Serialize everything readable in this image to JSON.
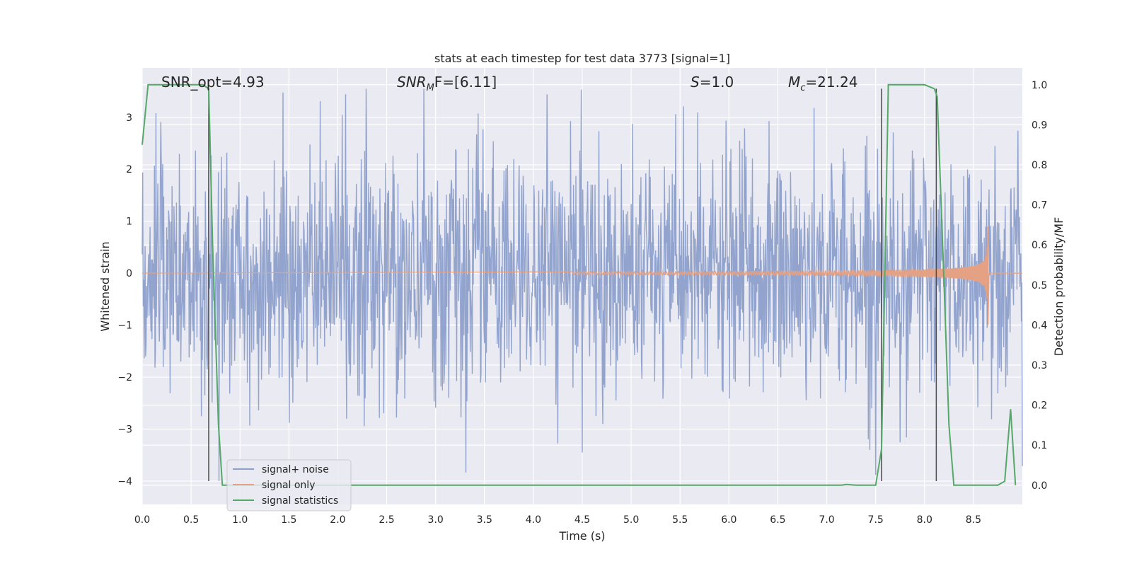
{
  "chart_data": {
    "type": "line",
    "title": "stats at each timestep for test data 3773 [signal=1]",
    "xlabel": "Time (s)",
    "ylabel": "Whitened strain",
    "y2label": "Detection probability/MF",
    "xlim": [
      0.0,
      9.0
    ],
    "ylim": [
      -4.45,
      3.95
    ],
    "y2lim": [
      -0.048,
      1.042
    ],
    "xticks": [
      "0.0",
      "0.5",
      "1.0",
      "1.5",
      "2.0",
      "2.5",
      "3.0",
      "3.5",
      "4.0",
      "4.5",
      "5.0",
      "5.5",
      "6.0",
      "6.5",
      "7.0",
      "7.5",
      "8.0",
      "8.5"
    ],
    "xtick_values": [
      0.0,
      0.5,
      1.0,
      1.5,
      2.0,
      2.5,
      3.0,
      3.5,
      4.0,
      4.5,
      5.0,
      5.5,
      6.0,
      6.5,
      7.0,
      7.5,
      8.0,
      8.5
    ],
    "yticks": [
      "3",
      "2",
      "1",
      "0",
      "−1",
      "−2",
      "−3",
      "−4"
    ],
    "ytick_values": [
      3,
      2,
      1,
      0,
      -1,
      -2,
      -3,
      -4
    ],
    "y2ticks": [
      "1.0",
      "0.9",
      "0.8",
      "0.7",
      "0.6",
      "0.5",
      "0.4",
      "0.3",
      "0.2",
      "0.1",
      "0.0"
    ],
    "y2tick_values": [
      1.0,
      0.9,
      0.8,
      0.7,
      0.6,
      0.5,
      0.4,
      0.3,
      0.2,
      0.1,
      0.0
    ],
    "grid": true,
    "legend_position": "lower-left",
    "annotations": {
      "snr_opt": "SNR_opt=4.93",
      "snr_mf_base": "SNR",
      "snr_mf_sub": "M",
      "snr_mf_rest": "F=[6.11]",
      "s_italic": "S",
      "s_rest": "=1.0",
      "mc_base": "M",
      "mc_sub": "c",
      "mc_rest": "=21.24"
    },
    "series": [
      {
        "name": "signal+ noise",
        "color": "#8da0cb",
        "axis": "left",
        "kind": "noise",
        "x_range": [
          0.0,
          9.0
        ],
        "samples": 1800,
        "typical_std": 1.0,
        "peak_max": 3.55,
        "peak_min": -4.0
      },
      {
        "name": "signal only",
        "color": "#e5a184",
        "axis": "left",
        "kind": "chirp",
        "start_time": 4.4,
        "merger_time": 8.65,
        "peak_amplitude": 1.0,
        "post_merger_value": 0.0
      },
      {
        "name": "signal statistics",
        "color": "#55a868",
        "axis": "right",
        "kind": "line",
        "x": [
          0.0,
          0.06,
          0.1,
          0.3,
          0.5,
          0.62,
          0.68,
          0.72,
          0.78,
          0.82,
          0.9,
          1.5,
          2.5,
          3.5,
          4.5,
          5.5,
          6.5,
          7.0,
          7.15,
          7.2,
          7.3,
          7.5,
          7.56,
          7.63,
          7.8,
          8.0,
          8.1,
          8.13,
          8.2,
          8.25,
          8.3,
          8.5,
          8.6,
          8.75,
          8.82,
          8.88,
          8.93
        ],
        "y": [
          0.85,
          1.0,
          1.0,
          1.0,
          1.0,
          1.0,
          0.99,
          0.6,
          0.15,
          0.0,
          0.0,
          0.0,
          0.0,
          0.0,
          0.0,
          0.0,
          0.0,
          0.0,
          0.0,
          0.002,
          0.0,
          0.0,
          0.09,
          1.0,
          1.0,
          1.0,
          0.99,
          0.97,
          0.5,
          0.15,
          0.0,
          0.0,
          0.0,
          0.0,
          0.01,
          0.19,
          0.0
        ]
      }
    ],
    "vertical_markers": {
      "color": "#4c4c4c",
      "x": [
        0.68,
        7.56,
        8.12
      ],
      "y_from": -4.0,
      "y_to": 3.55
    }
  },
  "legend": {
    "items": [
      "signal+ noise",
      "signal only",
      "signal statistics"
    ]
  }
}
